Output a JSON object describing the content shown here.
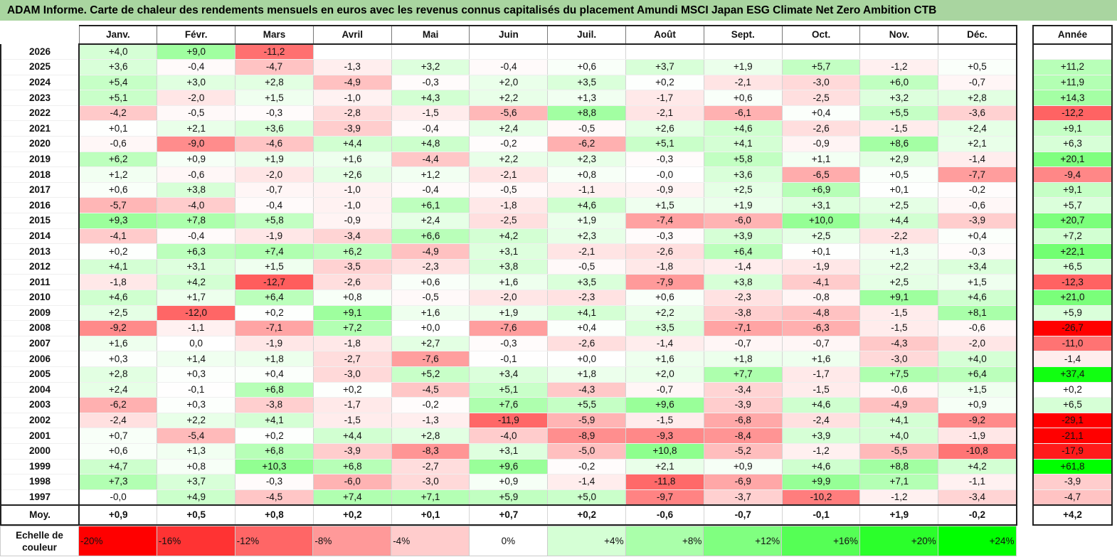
{
  "title": "ADAM Informe. Carte de chaleur des rendements mensuels en euros avec les revenus connus capitalisés du placement Amundi MSCI Japan ESG Climate Net Zero Ambition CTB",
  "chart_data": {
    "type": "heatmap",
    "title": "ADAM Informe. Carte de chaleur des rendements mensuels en euros avec les revenus connus capitalisés du placement Amundi MSCI Japan ESG Climate Net Zero Ambition CTB",
    "months": [
      "Janv.",
      "Févr.",
      "Mars",
      "Avril",
      "Mai",
      "Juin",
      "Juil.",
      "Août",
      "Sept.",
      "Oct.",
      "Nov.",
      "Déc."
    ],
    "annual_header": "Année",
    "average_label": "Moy.",
    "rows": [
      {
        "year": "2026",
        "values": [
          "+4,0",
          "+9,0",
          "-11,2",
          "",
          "",
          "",
          "",
          "",
          "",
          "",
          "",
          ""
        ],
        "annual": ""
      },
      {
        "year": "2025",
        "values": [
          "+3,6",
          "-0,4",
          "-4,7",
          "-1,3",
          "+3,2",
          "-0,4",
          "+0,6",
          "+3,7",
          "+1,9",
          "+5,7",
          "-1,2",
          "+0,5"
        ],
        "annual": "+11,2"
      },
      {
        "year": "2024",
        "values": [
          "+5,4",
          "+3,0",
          "+2,8",
          "-4,9",
          "-0,3",
          "+2,0",
          "+3,5",
          "+0,2",
          "-2,1",
          "-3,0",
          "+6,0",
          "-0,7"
        ],
        "annual": "+11,9"
      },
      {
        "year": "2023",
        "values": [
          "+5,1",
          "-2,0",
          "+1,5",
          "-1,0",
          "+4,3",
          "+2,2",
          "+1,3",
          "-1,7",
          "+0,6",
          "-2,5",
          "+3,2",
          "+2,8"
        ],
        "annual": "+14,3"
      },
      {
        "year": "2022",
        "values": [
          "-4,2",
          "-0,5",
          "-0,3",
          "-2,8",
          "-1,5",
          "-5,6",
          "+8,8",
          "-2,1",
          "-6,1",
          "+0,4",
          "+5,5",
          "-3,6"
        ],
        "annual": "-12,2"
      },
      {
        "year": "2021",
        "values": [
          "+0,1",
          "+2,1",
          "+3,6",
          "-3,9",
          "-0,4",
          "+2,4",
          "-0,5",
          "+2,6",
          "+4,6",
          "-2,6",
          "-1,5",
          "+2,4"
        ],
        "annual": "+9,1"
      },
      {
        "year": "2020",
        "values": [
          "-0,6",
          "-9,0",
          "-4,6",
          "+4,4",
          "+4,8",
          "-0,2",
          "-6,2",
          "+5,1",
          "+4,1",
          "-0,9",
          "+8,6",
          "+2,1"
        ],
        "annual": "+6,3"
      },
      {
        "year": "2019",
        "values": [
          "+6,2",
          "+0,9",
          "+1,9",
          "+1,6",
          "-4,4",
          "+2,2",
          "+2,3",
          "-0,3",
          "+5,8",
          "+1,1",
          "+2,9",
          "-1,4"
        ],
        "annual": "+20,1"
      },
      {
        "year": "2018",
        "values": [
          "+1,2",
          "-0,6",
          "-2,0",
          "+2,6",
          "+1,2",
          "-2,1",
          "+0,8",
          "-0,0",
          "+3,6",
          "-6,5",
          "+0,5",
          "-7,7"
        ],
        "annual": "-9,4"
      },
      {
        "year": "2017",
        "values": [
          "+0,6",
          "+3,8",
          "-0,7",
          "-1,0",
          "-0,4",
          "-0,5",
          "-1,1",
          "-0,9",
          "+2,5",
          "+6,9",
          "+0,1",
          "-0,2"
        ],
        "annual": "+9,1"
      },
      {
        "year": "2016",
        "values": [
          "-5,7",
          "-4,0",
          "-0,4",
          "-1,0",
          "+6,1",
          "-1,8",
          "+4,6",
          "+1,5",
          "+1,9",
          "+3,1",
          "+2,5",
          "-0,6"
        ],
        "annual": "+5,7"
      },
      {
        "year": "2015",
        "values": [
          "+9,3",
          "+7,8",
          "+5,8",
          "-0,9",
          "+2,4",
          "-2,5",
          "+1,9",
          "-7,4",
          "-6,0",
          "+10,0",
          "+4,4",
          "-3,9"
        ],
        "annual": "+20,7"
      },
      {
        "year": "2014",
        "values": [
          "-4,1",
          "-0,4",
          "-1,9",
          "-3,4",
          "+6,6",
          "+4,2",
          "+2,3",
          "-0,3",
          "+3,9",
          "+2,5",
          "-2,2",
          "+0,4"
        ],
        "annual": "+7,2"
      },
      {
        "year": "2013",
        "values": [
          "+0,2",
          "+6,3",
          "+7,4",
          "+6,2",
          "-4,9",
          "+3,1",
          "-2,1",
          "-2,6",
          "+6,4",
          "+0,1",
          "+1,3",
          "-0,3"
        ],
        "annual": "+22,1"
      },
      {
        "year": "2012",
        "values": [
          "+4,1",
          "+3,1",
          "+1,5",
          "-3,5",
          "-2,3",
          "+3,8",
          "-0,5",
          "-1,8",
          "-1,4",
          "-1,9",
          "+2,2",
          "+3,4"
        ],
        "annual": "+6,5"
      },
      {
        "year": "2011",
        "values": [
          "-1,8",
          "+4,2",
          "-12,7",
          "-2,6",
          "+0,6",
          "+1,6",
          "+3,5",
          "-7,9",
          "+3,8",
          "-4,1",
          "+2,5",
          "+1,5"
        ],
        "annual": "-12,3"
      },
      {
        "year": "2010",
        "values": [
          "+4,6",
          "+1,7",
          "+6,4",
          "+0,8",
          "-0,5",
          "-2,0",
          "-2,3",
          "+0,6",
          "-2,3",
          "-0,8",
          "+9,1",
          "+4,6"
        ],
        "annual": "+21,0"
      },
      {
        "year": "2009",
        "values": [
          "+2,5",
          "-12,0",
          "+0,2",
          "+9,1",
          "+1,6",
          "+1,9",
          "+4,1",
          "+2,2",
          "-3,8",
          "-4,8",
          "-1,5",
          "+8,1"
        ],
        "annual": "+5,9"
      },
      {
        "year": "2008",
        "values": [
          "-9,2",
          "-1,1",
          "-7,1",
          "+7,2",
          "+0,0",
          "-7,6",
          "+0,4",
          "+3,5",
          "-7,1",
          "-6,3",
          "-1,5",
          "-0,6"
        ],
        "annual": "-26,7"
      },
      {
        "year": "2007",
        "values": [
          "+1,6",
          "0,0",
          "-1,9",
          "-1,8",
          "+2,7",
          "-0,3",
          "-2,6",
          "-1,4",
          "-0,7",
          "-0,7",
          "-4,3",
          "-2,0"
        ],
        "annual": "-11,0"
      },
      {
        "year": "2006",
        "values": [
          "+0,3",
          "+1,4",
          "+1,8",
          "-2,7",
          "-7,6",
          "-0,1",
          "+0,0",
          "+1,6",
          "+1,8",
          "+1,6",
          "-3,0",
          "+4,0"
        ],
        "annual": "-1,4"
      },
      {
        "year": "2005",
        "values": [
          "+2,8",
          "+0,3",
          "+0,4",
          "-3,0",
          "+5,2",
          "+3,4",
          "+1,8",
          "+2,0",
          "+7,7",
          "-1,7",
          "+7,5",
          "+6,4"
        ],
        "annual": "+37,4"
      },
      {
        "year": "2004",
        "values": [
          "+2,4",
          "-0,1",
          "+6,8",
          "+0,2",
          "-4,5",
          "+5,1",
          "-4,3",
          "-0,7",
          "-3,4",
          "-1,5",
          "-0,6",
          "+1,5"
        ],
        "annual": "+0,2"
      },
      {
        "year": "2003",
        "values": [
          "-6,2",
          "+0,3",
          "-3,8",
          "-1,7",
          "-0,2",
          "+7,6",
          "+5,5",
          "+9,6",
          "-3,9",
          "+4,6",
          "-4,9",
          "+0,9"
        ],
        "annual": "+6,5"
      },
      {
        "year": "2002",
        "values": [
          "-2,4",
          "+2,2",
          "+4,1",
          "-1,5",
          "-1,3",
          "-11,9",
          "-5,9",
          "-1,5",
          "-6,8",
          "-2,4",
          "+4,1",
          "-9,2"
        ],
        "annual": "-29,1"
      },
      {
        "year": "2001",
        "values": [
          "+0,7",
          "-5,4",
          "+0,2",
          "+4,4",
          "+2,8",
          "-4,0",
          "-8,9",
          "-9,3",
          "-8,4",
          "+3,9",
          "+4,0",
          "-1,9"
        ],
        "annual": "-21,1"
      },
      {
        "year": "2000",
        "values": [
          "+0,6",
          "+1,3",
          "+6,8",
          "-3,9",
          "-8,3",
          "+3,1",
          "-5,0",
          "+10,8",
          "-5,2",
          "-1,2",
          "-5,5",
          "-10,8"
        ],
        "annual": "-17,9"
      },
      {
        "year": "1999",
        "values": [
          "+4,7",
          "+0,8",
          "+10,3",
          "+6,8",
          "-2,7",
          "+9,6",
          "-0,2",
          "+2,1",
          "+0,9",
          "+4,6",
          "+8,8",
          "+4,2"
        ],
        "annual": "+61,8"
      },
      {
        "year": "1998",
        "values": [
          "+7,3",
          "+3,7",
          "-0,3",
          "-6,0",
          "-3,0",
          "+0,9",
          "-1,4",
          "-11,8",
          "-6,9",
          "+9,9",
          "+7,1",
          "-1,1"
        ],
        "annual": "-3,9"
      },
      {
        "year": "1997",
        "values": [
          "-0,0",
          "+4,9",
          "-4,5",
          "+7,4",
          "+7,1",
          "+5,9",
          "+5,0",
          "-9,7",
          "-3,7",
          "-10,2",
          "-1,2",
          "-3,4"
        ],
        "annual": "-4,7"
      }
    ],
    "averages": {
      "values": [
        "+0,9",
        "+0,5",
        "+0,8",
        "+0,2",
        "+0,1",
        "+0,7",
        "+0,2",
        "-0,6",
        "-0,7",
        "-0,1",
        "+1,9",
        "-0,2"
      ],
      "annual": "+4,2"
    },
    "color_scale": {
      "label": "Echelle de couleur",
      "stops": [
        {
          "label": "-20%",
          "value": -20,
          "color": "#ff0000"
        },
        {
          "label": "-16%",
          "value": -16,
          "color": "#ff3333"
        },
        {
          "label": "-12%",
          "value": -12,
          "color": "#ff6666"
        },
        {
          "label": "-8%",
          "value": -8,
          "color": "#ff9999"
        },
        {
          "label": "-4%",
          "value": -4,
          "color": "#ffcccc"
        },
        {
          "label": "0%",
          "value": 0,
          "color": "#ffffff"
        },
        {
          "label": "+4%",
          "value": 4,
          "color": "#d5ffd5"
        },
        {
          "label": "+8%",
          "value": 8,
          "color": "#aaffaa"
        },
        {
          "label": "+12%",
          "value": 12,
          "color": "#80ff80"
        },
        {
          "label": "+16%",
          "value": 16,
          "color": "#55ff55"
        },
        {
          "label": "+20%",
          "value": 20,
          "color": "#2bff2b"
        },
        {
          "label": "+24%",
          "value": 24,
          "color": "#00ff00"
        }
      ]
    }
  }
}
